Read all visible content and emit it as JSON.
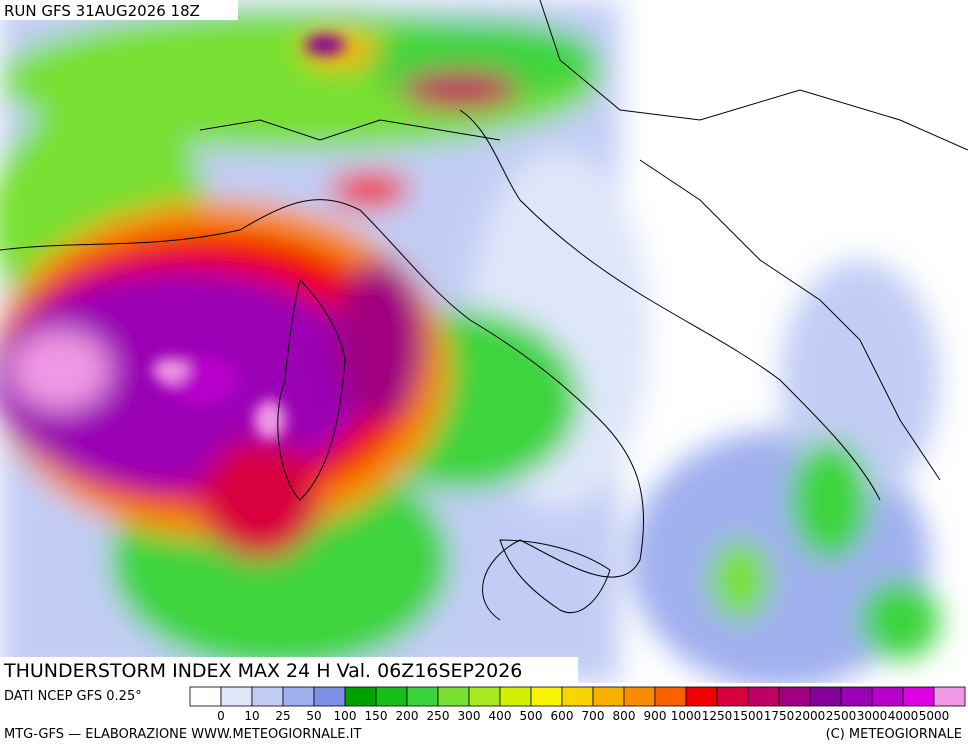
{
  "header": {
    "run": "RUN GFS 31AUG2026 18Z"
  },
  "map": {
    "title": "THUNDERSTORM INDEX MAX 24 H Val. 06Z16SEP2026",
    "source": "DATI NCEP GFS 0.25°"
  },
  "legend": {
    "labels": [
      0,
      10,
      25,
      50,
      100,
      150,
      200,
      250,
      300,
      400,
      500,
      600,
      700,
      800,
      900,
      1000,
      1250,
      1500,
      1750,
      2000,
      2500,
      3000,
      4000,
      5000
    ],
    "colors": [
      "#ffffff",
      "#dfe6fa",
      "#c2cdf5",
      "#a0b0ef",
      "#7e90e6",
      "#00a000",
      "#18be18",
      "#3cd43c",
      "#78e030",
      "#a8e820",
      "#d4f000",
      "#f8f400",
      "#f8d400",
      "#f8b000",
      "#f88c00",
      "#f86000",
      "#f00000",
      "#d8003c",
      "#c00064",
      "#a00080",
      "#84009a",
      "#9a00b4",
      "#b800cc",
      "#dc00e4",
      "#f098e4"
    ]
  },
  "footer": {
    "left": "MTG-GFS — ELABORAZIONE WWW.METEOGIORNALE.IT",
    "right": "(C) METEOGIORNALE"
  }
}
